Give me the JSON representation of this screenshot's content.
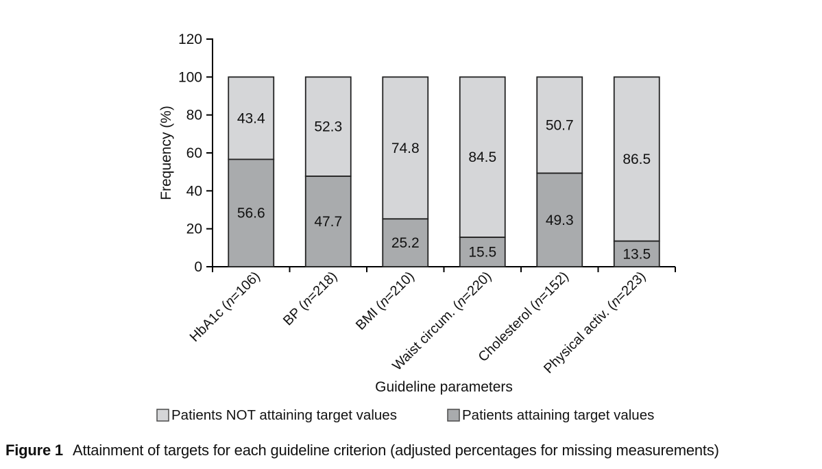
{
  "figure": {
    "caption_label": "Figure 1",
    "caption_text": "Attainment of targets for each guideline criterion (adjusted percentages for missing measurements)"
  },
  "chart_data": {
    "type": "bar",
    "stacked": true,
    "title": "",
    "xlabel": "Guideline parameters",
    "ylabel": "Frequency (%)",
    "ylim": [
      0,
      120
    ],
    "yticks": [
      0,
      20,
      40,
      60,
      80,
      100,
      120
    ],
    "grid": false,
    "legend_position": "bottom",
    "categories": [
      {
        "name": "HbA1c",
        "n": "106",
        "label": "HbA1c (n=106)"
      },
      {
        "name": "BP",
        "n": "218",
        "label": "BP (n=218)"
      },
      {
        "name": "BMI",
        "n": "210",
        "label": "BMI (n=210)"
      },
      {
        "name": "Waist circum.",
        "n": "220",
        "label": "Waist circum. (n=220)"
      },
      {
        "name": "Cholesterol",
        "n": "152",
        "label": "Cholesterol (n=152)"
      },
      {
        "name": "Physical activ.",
        "n": "223",
        "label": "Physical activ. (n=223)"
      }
    ],
    "series": [
      {
        "name": "Patients attaining target values",
        "key": "attaining",
        "stack_position": "bottom",
        "color": "#a9abad",
        "values": [
          56.6,
          47.7,
          25.2,
          15.5,
          49.3,
          13.5
        ]
      },
      {
        "name": "Patients NOT attaining target values",
        "key": "not-attaining",
        "stack_position": "top",
        "color": "#d5d6d8",
        "values": [
          43.4,
          52.3,
          74.8,
          84.5,
          50.7,
          86.5
        ]
      }
    ],
    "legend": [
      {
        "label": "Patients NOT attaining target values",
        "key": "not-attaining",
        "color": "#d5d6d8"
      },
      {
        "label": "Patients attaining target values",
        "key": "attaining",
        "color": "#a9abad"
      }
    ],
    "colors": {
      "bar_border": "#222222",
      "axis": "#000000",
      "text": "#111111"
    }
  }
}
